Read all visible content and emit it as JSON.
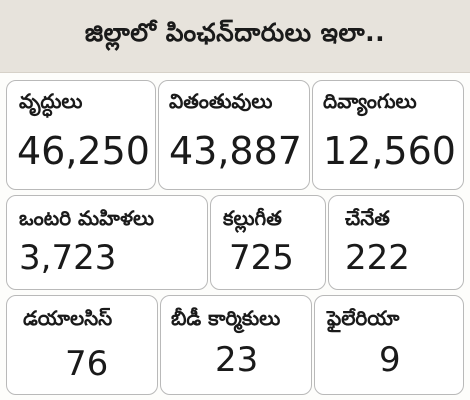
{
  "title": "జిల్లాలో పింఛన్‌దారులు ఇలా..",
  "categories": [
    {
      "label": "వృద్ధులు",
      "value": "46,250"
    },
    {
      "label": "వితంతువులు",
      "value": "43,887"
    },
    {
      "label": "దివ్యాంగులు",
      "value": "12,560"
    },
    {
      "label": "ఒంటరి మహిళలు",
      "value": "3,723"
    },
    {
      "label": "కల్లుగీత",
      "value": "725"
    },
    {
      "label": "చేనేత",
      "value": "222"
    },
    {
      "label": "డయాలసిస్",
      "value": "76"
    },
    {
      "label": "బీడీ కార్మికులు",
      "value": "23"
    },
    {
      "label": "ఫైలేరియా",
      "value": "9"
    }
  ]
}
